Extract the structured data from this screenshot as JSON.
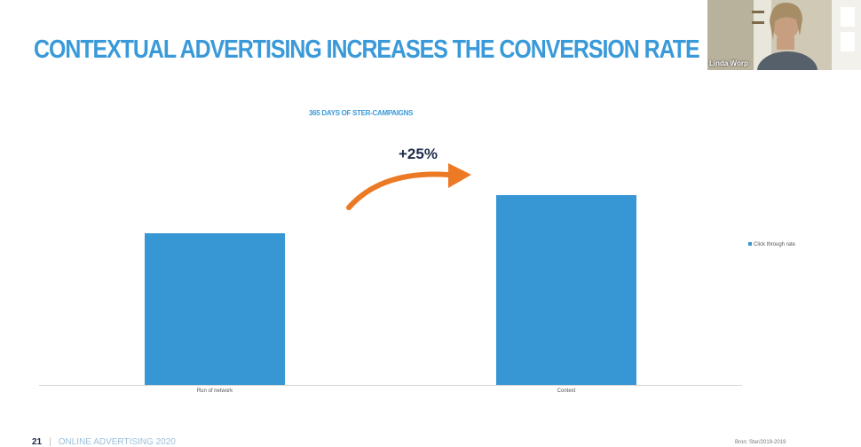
{
  "slide": {
    "title": "CONTEXTUAL ADVERTISING INCREASES THE CONVERSION RATE",
    "growth_label": "+25%",
    "footer_page": "21",
    "footer_separator": "|",
    "footer_text": "ONLINE ADVERTISING 2020",
    "source": "Bron: Ster/2019-2019"
  },
  "webcam": {
    "participant_name": "Linda Worp"
  },
  "colors": {
    "title": "#3a9ad9",
    "bar": "#3797d4",
    "arrow": "#ec7a25"
  },
  "chart_data": {
    "type": "bar",
    "title": "365 DAYS OF STER-CAMPAIGNS",
    "categories": [
      "Run of network",
      "Context"
    ],
    "series": [
      {
        "name": "Click through rate",
        "values": [
          0.8,
          1.0
        ]
      }
    ],
    "ylim": [
      0,
      1.0
    ],
    "grid": false,
    "legend_position": "right"
  }
}
